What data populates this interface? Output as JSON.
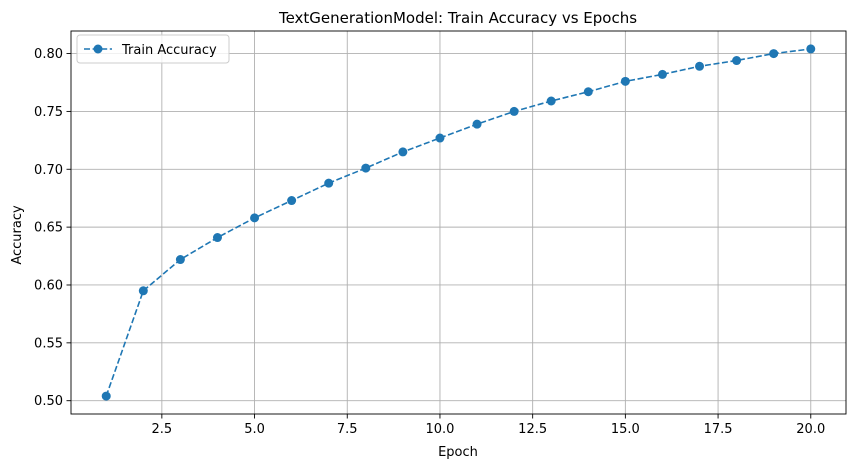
{
  "chart_data": {
    "type": "line",
    "title": "TextGenerationModel: Train Accuracy vs Epochs",
    "xlabel": "Epoch",
    "ylabel": "Accuracy",
    "xlim": [
      0.05,
      20.95
    ],
    "ylim": [
      0.4885,
      0.8195
    ],
    "xticks": [
      2.5,
      5.0,
      7.5,
      10.0,
      12.5,
      15.0,
      17.5,
      20.0
    ],
    "xtick_labels": [
      "2.5",
      "5.0",
      "7.5",
      "10.0",
      "12.5",
      "15.0",
      "17.5",
      "20.0"
    ],
    "yticks": [
      0.5,
      0.55,
      0.6,
      0.65,
      0.7,
      0.75,
      0.8
    ],
    "ytick_labels": [
      "0.50",
      "0.55",
      "0.60",
      "0.65",
      "0.70",
      "0.75",
      "0.80"
    ],
    "grid": true,
    "legend": "top-left",
    "line_style": "dashed",
    "marker": "circle",
    "color": "#1f77b4",
    "series": [
      {
        "name": "Train Accuracy",
        "x": [
          1,
          2,
          3,
          4,
          5,
          6,
          7,
          8,
          9,
          10,
          11,
          12,
          13,
          14,
          15,
          16,
          17,
          18,
          19,
          20
        ],
        "y": [
          0.504,
          0.595,
          0.622,
          0.641,
          0.658,
          0.673,
          0.688,
          0.701,
          0.715,
          0.727,
          0.739,
          0.75,
          0.759,
          0.767,
          0.776,
          0.782,
          0.789,
          0.794,
          0.8,
          0.804
        ]
      }
    ]
  }
}
